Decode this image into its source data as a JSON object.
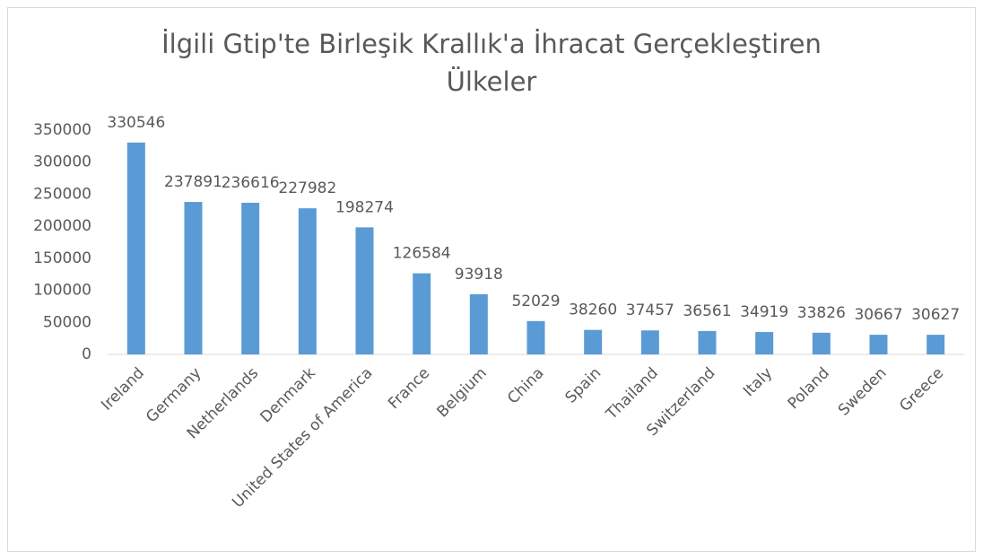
{
  "chart_data": {
    "type": "bar",
    "title": "İlgili Gtip'te Birleşik Krallık'a İhracat Gerçekleştiren Ülkeler",
    "categories": [
      "Ireland",
      "Germany",
      "Netherlands",
      "Denmark",
      "United States of America",
      "France",
      "Belgium",
      "China",
      "Spain",
      "Thailand",
      "Switzerland",
      "Italy",
      "Poland",
      "Sweden",
      "Greece"
    ],
    "values": [
      330546,
      237891,
      236616,
      227982,
      198274,
      126584,
      93918,
      52029,
      38260,
      37457,
      36561,
      34919,
      33826,
      30667,
      30627
    ],
    "color": "#5b9bd5",
    "ylim": [
      0,
      350000
    ],
    "yticks": [
      0,
      50000,
      100000,
      150000,
      200000,
      250000,
      300000,
      350000
    ],
    "grid": false
  }
}
